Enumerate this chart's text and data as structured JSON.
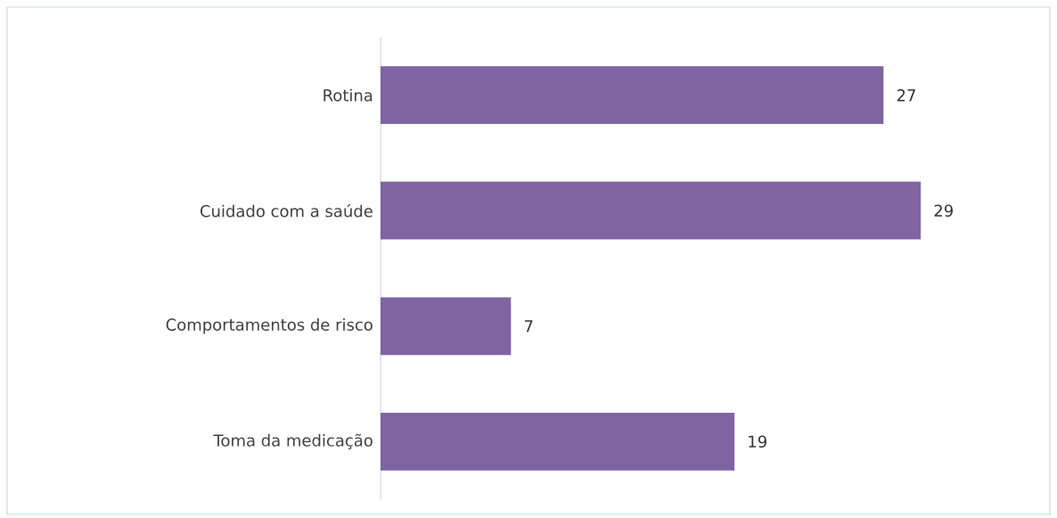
{
  "chart_data": {
    "type": "bar",
    "orientation": "horizontal",
    "categories": [
      "Rotina",
      "Cuidado com a saúde",
      "Comportamentos de risco",
      "Toma da medicação"
    ],
    "values": [
      27,
      29,
      7,
      19
    ],
    "color": "#8064a2",
    "tick_labels": "y",
    "data_labels": true
  }
}
